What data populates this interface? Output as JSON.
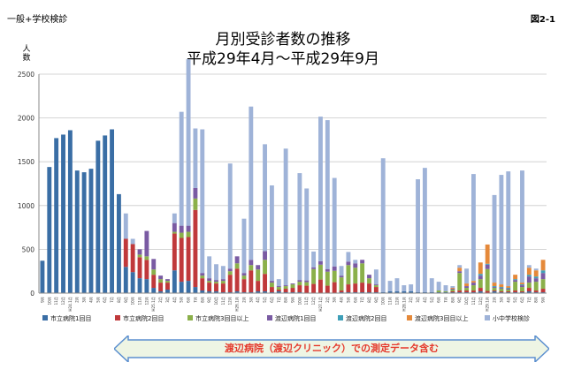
{
  "header": {
    "category": "一般+学校検診",
    "figure_label": "図2-1",
    "title_line1": "月別受診者数の推移",
    "title_line2": "平成29年4月〜平成29年9月",
    "y_unit": "人数"
  },
  "banner": {
    "text": "渡辺病院（渡辺クリニック）での測定データ含む"
  },
  "colors": {
    "s1": "#3a6ea5",
    "s2": "#c0393b",
    "s3": "#8bb04a",
    "s4": "#7a5ba3",
    "s5": "#3e9fb8",
    "s6": "#e5893a",
    "s7": "#9fb3d8",
    "grid": "#c9c9c9",
    "banner_fill": "#eef5e4",
    "banner_stroke": "#5b8fcf"
  },
  "chart_data": {
    "type": "bar",
    "stacked": true,
    "ylim": [
      0,
      2500
    ],
    "yticks": [
      0,
      500,
      1000,
      1500,
      2000,
      2500
    ],
    "grid": true,
    "legend_position": "bottom",
    "categories": [
      "9月",
      "10月",
      "11月",
      "12月",
      "H24.1月",
      "2月",
      "3月",
      "4月",
      "5月",
      "6月",
      "7月",
      "8月",
      "9月",
      "10月",
      "11月",
      "12月",
      "H25.1月",
      "2月",
      "3月",
      "4月",
      "5月",
      "6月",
      "7月",
      "8月",
      "9月",
      "10月",
      "11月",
      "12月",
      "H26.1月",
      "2月",
      "3月",
      "4月",
      "5月",
      "6月",
      "7月",
      "8月",
      "9月",
      "10月",
      "11月",
      "12月",
      "H27.1月",
      "2月",
      "3月",
      "4月",
      "5月",
      "6月",
      "7月",
      "8月",
      "9月",
      "10月",
      "11月",
      "12月",
      "H28.1月",
      "2月",
      "3月",
      "4月",
      "5月",
      "6月",
      "7月",
      "8月",
      "9月",
      "10月",
      "11月",
      "12月",
      "H29.1月",
      "2月",
      "3月",
      "4月",
      "5月",
      "6月",
      "7月",
      "8月",
      "9月"
    ],
    "series": [
      {
        "name": "市立病院1回目",
        "values": [
          370,
          1440,
          1770,
          1810,
          1860,
          1400,
          1380,
          1420,
          1740,
          1800,
          1870,
          1130,
          300,
          240,
          170,
          160,
          60,
          20,
          40,
          260,
          130,
          140,
          70,
          30,
          20,
          20,
          10,
          10,
          20,
          10,
          10,
          20,
          20,
          10,
          20,
          10,
          10,
          10,
          5,
          5,
          5,
          5,
          5,
          10,
          10,
          10,
          10,
          10,
          10,
          10,
          20,
          20,
          20,
          20,
          10,
          10,
          10,
          10,
          10,
          10,
          10,
          10,
          10,
          20,
          5,
          20,
          10,
          10,
          10,
          10,
          20,
          10,
          10
        ]
      },
      {
        "name": "市立病院2回目",
        "values": [
          0,
          0,
          0,
          0,
          0,
          0,
          0,
          0,
          0,
          0,
          0,
          0,
          320,
          320,
          240,
          220,
          150,
          100,
          80,
          420,
          500,
          500,
          880,
          140,
          100,
          90,
          100,
          200,
          260,
          150,
          250,
          120,
          200,
          60,
          20,
          40,
          50,
          80,
          80,
          100,
          150,
          80,
          120,
          20,
          90,
          100,
          110,
          100,
          60,
          0,
          0,
          0,
          0,
          0,
          0,
          0,
          0,
          0,
          0,
          10,
          20,
          20,
          20,
          40,
          20,
          10,
          10,
          10,
          20,
          10,
          40,
          20,
          40
        ]
      },
      {
        "name": "市立病院3回目以上",
        "values": [
          0,
          0,
          0,
          0,
          0,
          0,
          0,
          0,
          0,
          0,
          0,
          0,
          0,
          0,
          30,
          40,
          60,
          40,
          20,
          20,
          60,
          60,
          130,
          30,
          20,
          20,
          30,
          40,
          60,
          40,
          60,
          130,
          160,
          50,
          30,
          30,
          40,
          40,
          40,
          170,
          170,
          160,
          130,
          150,
          220,
          180,
          220,
          60,
          20,
          0,
          0,
          0,
          0,
          0,
          0,
          0,
          0,
          20,
          10,
          20,
          200,
          30,
          60,
          100,
          250,
          30,
          30,
          20,
          100,
          50,
          60,
          100,
          110
        ]
      },
      {
        "name": "渡辺病院1回目",
        "values": [
          0,
          0,
          0,
          0,
          0,
          0,
          0,
          0,
          0,
          0,
          0,
          0,
          0,
          0,
          60,
          290,
          120,
          40,
          20,
          100,
          80,
          70,
          120,
          30,
          30,
          20,
          20,
          30,
          80,
          30,
          60,
          50,
          100,
          20,
          10,
          10,
          10,
          20,
          20,
          20,
          40,
          30,
          50,
          20,
          40,
          50,
          40,
          40,
          10,
          0,
          0,
          0,
          0,
          0,
          0,
          0,
          0,
          0,
          0,
          10,
          20,
          20,
          30,
          40,
          50,
          10,
          10,
          10,
          20,
          20,
          70,
          40,
          70
        ]
      },
      {
        "name": "渡辺病院2回目",
        "values": [
          0,
          0,
          0,
          0,
          0,
          0,
          0,
          0,
          0,
          0,
          0,
          0,
          0,
          0,
          0,
          0,
          0,
          0,
          0,
          0,
          0,
          0,
          0,
          0,
          0,
          0,
          0,
          0,
          0,
          0,
          0,
          0,
          0,
          0,
          0,
          0,
          0,
          0,
          0,
          0,
          0,
          0,
          0,
          0,
          0,
          0,
          0,
          0,
          0,
          0,
          0,
          0,
          0,
          0,
          0,
          0,
          0,
          0,
          0,
          0,
          0,
          0,
          0,
          20,
          10,
          10,
          10,
          10,
          10,
          10,
          20,
          20,
          30
        ]
      },
      {
        "name": "渡辺病院3回目以上",
        "values": [
          0,
          0,
          0,
          0,
          0,
          0,
          0,
          0,
          0,
          0,
          0,
          0,
          0,
          0,
          0,
          0,
          0,
          0,
          0,
          0,
          0,
          0,
          0,
          0,
          0,
          0,
          0,
          0,
          0,
          0,
          0,
          0,
          0,
          0,
          0,
          0,
          0,
          0,
          0,
          0,
          0,
          0,
          0,
          0,
          0,
          0,
          0,
          0,
          0,
          0,
          0,
          0,
          0,
          0,
          0,
          0,
          0,
          0,
          0,
          10,
          40,
          30,
          20,
          130,
          220,
          40,
          30,
          20,
          50,
          20,
          80,
          70,
          120
        ]
      },
      {
        "name": "小中学校検診",
        "values": [
          0,
          0,
          0,
          0,
          0,
          0,
          0,
          0,
          0,
          0,
          0,
          0,
          290,
          60,
          0,
          0,
          0,
          0,
          0,
          110,
          1300,
          1900,
          680,
          1640,
          250,
          180,
          150,
          1200,
          0,
          620,
          1750,
          0,
          1220,
          1090,
          80,
          1560,
          0,
          1220,
          1050,
          180,
          1650,
          1700,
          1010,
          110,
          110,
          40,
          0,
          0,
          170,
          1530,
          120,
          150,
          70,
          80,
          1290,
          1420,
          160,
          100,
          70,
          20,
          30,
          170,
          1220,
          0,
          0,
          1000,
          1250,
          1310,
          0,
          1280,
          30,
          20,
          0
        ]
      }
    ]
  }
}
